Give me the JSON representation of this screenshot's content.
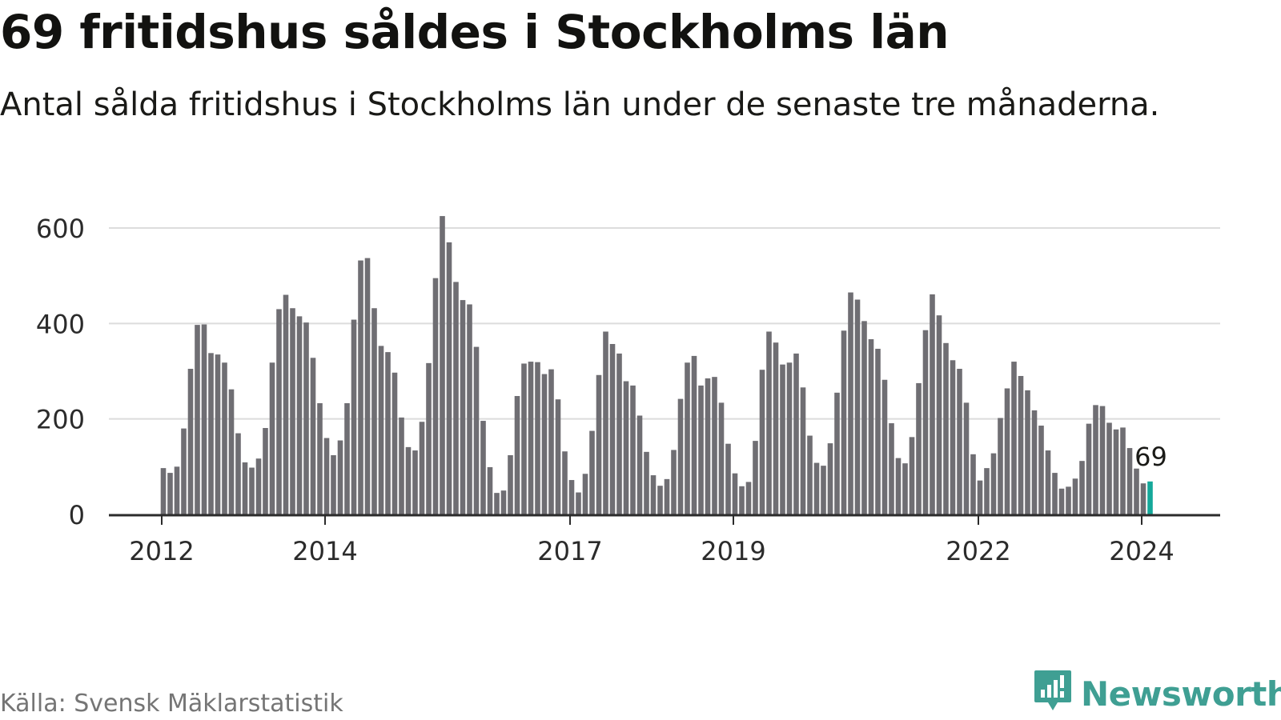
{
  "header": {
    "title": "69 fritidshus såldes i Stockholms län",
    "subtitle": "Antal sålda fritidshus i Stockholms län under de senaste tre månaderna."
  },
  "footer": {
    "source": "Källa: Svensk Mäklarstatistik",
    "brand": "Newsworthy",
    "brand_icon": "chart-speech-bubble-icon"
  },
  "colors": {
    "bar": "#6f6e73",
    "highlight": "#15a89a",
    "grid": "#dcdcdc",
    "axis": "#2b2b2b",
    "brand": "#3f9f93"
  },
  "chart_data": {
    "type": "bar",
    "title": "69 fritidshus såldes i Stockholms län",
    "subtitle": "Antal sålda fritidshus i Stockholms län under de senaste tre månaderna.",
    "xlabel": "",
    "ylabel": "",
    "ylim": [
      0,
      600
    ],
    "yticks": [
      0,
      200,
      400,
      600
    ],
    "x_ticks": [
      "2012",
      "2014",
      "2017",
      "2019",
      "2022",
      "2024"
    ],
    "x_tick_years": [
      2012,
      2014,
      2017,
      2019,
      2022,
      2024
    ],
    "start": {
      "year": 2012,
      "month": 1
    },
    "grid": true,
    "highlight_label": "69",
    "series": [
      {
        "name": "Antal sålda fritidshus",
        "values": [
          97,
          87,
          100,
          180,
          305,
          397,
          398,
          338,
          335,
          318,
          262,
          170,
          109,
          98,
          117,
          181,
          318,
          430,
          460,
          432,
          415,
          402,
          328,
          233,
          160,
          124,
          155,
          233,
          408,
          532,
          537,
          432,
          353,
          340,
          297,
          203,
          141,
          134,
          194,
          317,
          495,
          625,
          570,
          487,
          449,
          440,
          351,
          196,
          99,
          45,
          50,
          124,
          248,
          316,
          320,
          319,
          294,
          304,
          241,
          132,
          72,
          46,
          85,
          175,
          292,
          383,
          357,
          337,
          279,
          270,
          207,
          131,
          82,
          60,
          74,
          135,
          242,
          318,
          332,
          270,
          285,
          288,
          234,
          148,
          86,
          59,
          68,
          154,
          303,
          383,
          360,
          314,
          318,
          337,
          266,
          165,
          108,
          102,
          149,
          255,
          385,
          465,
          450,
          405,
          367,
          347,
          282,
          191,
          118,
          107,
          162,
          275,
          386,
          461,
          417,
          359,
          323,
          305,
          234,
          126,
          71,
          97,
          128,
          202,
          264,
          320,
          290,
          260,
          218,
          186,
          134,
          87,
          54,
          58,
          75,
          112,
          190,
          229,
          227,
          192,
          178,
          182,
          139,
          96,
          65,
          69
        ]
      }
    ]
  }
}
